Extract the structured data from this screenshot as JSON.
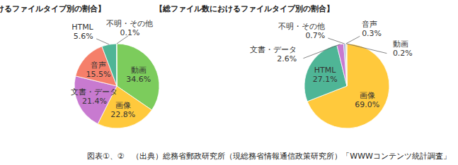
{
  "chart_data": [
    {
      "type": "pie",
      "title": "【総データ量におけるファイルタイプ別の割合】",
      "categories": [
        "動画",
        "画像",
        "文書・データ",
        "音声",
        "HTML",
        "不明・その他"
      ],
      "values": [
        34.6,
        22.8,
        21.4,
        15.5,
        5.6,
        0.1
      ],
      "value_labels": [
        "34.6%",
        "22.8%",
        "21.4%",
        "15.5%",
        "5.6%",
        "0.1%"
      ],
      "colors": [
        "#7ccc5c",
        "#ffc93c",
        "#c87ad0",
        "#f57f6a",
        "#4fb596",
        "#8fa9d6"
      ],
      "data_labels": true
    },
    {
      "type": "pie",
      "title": "【総ファイル数におけるファイルタイプ別の割合】",
      "categories": [
        "画像",
        "HTML",
        "文書・データ",
        "不明・その他",
        "音声",
        "動画"
      ],
      "values": [
        69.0,
        27.1,
        2.6,
        0.7,
        0.3,
        0.2
      ],
      "value_labels": [
        "69.0%",
        "27.1%",
        "2.6%",
        "0.7%",
        "0.3%",
        "0.2%"
      ],
      "colors": [
        "#ffc93c",
        "#4fb596",
        "#c87ad0",
        "#8fa9d6",
        "#f57f6a",
        "#7ccc5c"
      ],
      "data_labels": true
    }
  ],
  "caption": "図表①、②　（出典）総務省郵政研究所（現総務省情報通信政策研究所）「WWWコンテンツ統計調査」"
}
